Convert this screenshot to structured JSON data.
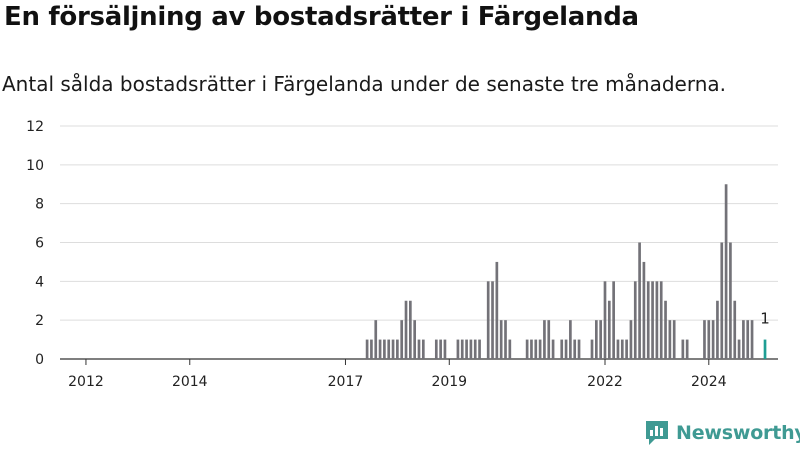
{
  "header": {
    "title": "En försäljning av bostadsrätter i Färgelanda",
    "subtitle": "Antal sålda bostadsrätter i Färgelanda under de senaste tre månaderna."
  },
  "logo": {
    "text": "Newsworthy",
    "icon": "newsworthy-logo-icon"
  },
  "colors": {
    "bar": "#737278",
    "highlight": "#1f9e94",
    "grid": "#dddddd",
    "axis": "#333333",
    "brand": "#3f9a93"
  },
  "chart_data": {
    "type": "bar",
    "title": "En försäljning av bostadsrätter i Färgelanda",
    "subtitle": "Antal sålda bostadsrätter i Färgelanda under de senaste tre månaderna.",
    "xlabel": "",
    "ylabel": "",
    "ylim": [
      0,
      12
    ],
    "yticks": [
      0,
      2,
      4,
      6,
      8,
      10,
      12
    ],
    "xticks": [
      "2012",
      "2014",
      "2017",
      "2019",
      "2022",
      "2024"
    ],
    "grid": true,
    "x_start": "2011-07",
    "x_end": "2025-05",
    "series": [
      {
        "points": [
          {
            "x": "2017-06",
            "y": 1
          },
          {
            "x": "2017-07",
            "y": 1
          },
          {
            "x": "2017-08",
            "y": 2
          },
          {
            "x": "2017-09",
            "y": 1
          },
          {
            "x": "2017-10",
            "y": 1
          },
          {
            "x": "2017-11",
            "y": 1
          },
          {
            "x": "2017-12",
            "y": 1
          },
          {
            "x": "2018-01",
            "y": 1
          },
          {
            "x": "2018-02",
            "y": 2
          },
          {
            "x": "2018-03",
            "y": 3
          },
          {
            "x": "2018-04",
            "y": 3
          },
          {
            "x": "2018-05",
            "y": 2
          },
          {
            "x": "2018-06",
            "y": 1
          },
          {
            "x": "2018-07",
            "y": 1
          },
          {
            "x": "2018-10",
            "y": 1
          },
          {
            "x": "2018-11",
            "y": 1
          },
          {
            "x": "2018-12",
            "y": 1
          },
          {
            "x": "2019-03",
            "y": 1
          },
          {
            "x": "2019-04",
            "y": 1
          },
          {
            "x": "2019-05",
            "y": 1
          },
          {
            "x": "2019-06",
            "y": 1
          },
          {
            "x": "2019-07",
            "y": 1
          },
          {
            "x": "2019-08",
            "y": 1
          },
          {
            "x": "2019-10",
            "y": 4
          },
          {
            "x": "2019-11",
            "y": 4
          },
          {
            "x": "2019-12",
            "y": 5
          },
          {
            "x": "2020-01",
            "y": 2
          },
          {
            "x": "2020-02",
            "y": 2
          },
          {
            "x": "2020-03",
            "y": 1
          },
          {
            "x": "2020-07",
            "y": 1
          },
          {
            "x": "2020-08",
            "y": 1
          },
          {
            "x": "2020-09",
            "y": 1
          },
          {
            "x": "2020-10",
            "y": 1
          },
          {
            "x": "2020-11",
            "y": 2
          },
          {
            "x": "2020-12",
            "y": 2
          },
          {
            "x": "2021-01",
            "y": 1
          },
          {
            "x": "2021-03",
            "y": 1
          },
          {
            "x": "2021-04",
            "y": 1
          },
          {
            "x": "2021-05",
            "y": 2
          },
          {
            "x": "2021-06",
            "y": 1
          },
          {
            "x": "2021-07",
            "y": 1
          },
          {
            "x": "2021-10",
            "y": 1
          },
          {
            "x": "2021-11",
            "y": 2
          },
          {
            "x": "2021-12",
            "y": 2
          },
          {
            "x": "2022-01",
            "y": 4
          },
          {
            "x": "2022-02",
            "y": 3
          },
          {
            "x": "2022-03",
            "y": 4
          },
          {
            "x": "2022-04",
            "y": 1
          },
          {
            "x": "2022-05",
            "y": 1
          },
          {
            "x": "2022-06",
            "y": 1
          },
          {
            "x": "2022-07",
            "y": 2
          },
          {
            "x": "2022-08",
            "y": 4
          },
          {
            "x": "2022-09",
            "y": 6
          },
          {
            "x": "2022-10",
            "y": 5
          },
          {
            "x": "2022-11",
            "y": 4
          },
          {
            "x": "2022-12",
            "y": 4
          },
          {
            "x": "2023-01",
            "y": 4
          },
          {
            "x": "2023-02",
            "y": 4
          },
          {
            "x": "2023-03",
            "y": 3
          },
          {
            "x": "2023-04",
            "y": 2
          },
          {
            "x": "2023-05",
            "y": 2
          },
          {
            "x": "2023-07",
            "y": 1
          },
          {
            "x": "2023-08",
            "y": 1
          },
          {
            "x": "2023-12",
            "y": 2
          },
          {
            "x": "2024-01",
            "y": 2
          },
          {
            "x": "2024-02",
            "y": 2
          },
          {
            "x": "2024-03",
            "y": 3
          },
          {
            "x": "2024-04",
            "y": 6
          },
          {
            "x": "2024-05",
            "y": 9
          },
          {
            "x": "2024-06",
            "y": 6
          },
          {
            "x": "2024-07",
            "y": 3
          },
          {
            "x": "2024-08",
            "y": 1
          },
          {
            "x": "2024-09",
            "y": 2
          },
          {
            "x": "2024-10",
            "y": 2
          },
          {
            "x": "2024-11",
            "y": 2
          }
        ]
      }
    ],
    "highlight": {
      "x": "2025-02",
      "y": 1,
      "label": "1"
    }
  }
}
